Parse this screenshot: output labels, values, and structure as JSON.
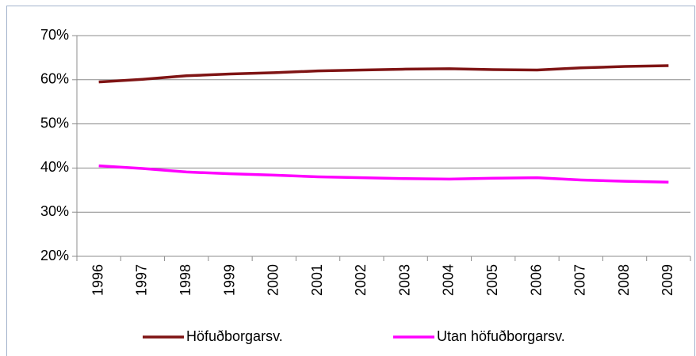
{
  "chart_data": {
    "type": "line",
    "categories": [
      "1996",
      "1997",
      "1998",
      "1999",
      "2000",
      "2001",
      "2002",
      "2003",
      "2004",
      "2005",
      "2006",
      "2007",
      "2008",
      "2009"
    ],
    "series": [
      {
        "name": "Höfuðborgarsv.",
        "color": "#7f1414",
        "values": [
          59.5,
          60.1,
          60.9,
          61.3,
          61.6,
          62.0,
          62.2,
          62.4,
          62.5,
          62.3,
          62.2,
          62.7,
          63.0,
          63.2
        ]
      },
      {
        "name": "Utan höfuðborgarsv.",
        "color": "#ff00ff",
        "values": [
          40.5,
          39.9,
          39.1,
          38.7,
          38.4,
          38.0,
          37.8,
          37.6,
          37.5,
          37.7,
          37.8,
          37.3,
          37.0,
          36.8
        ]
      }
    ],
    "ylim": [
      20,
      70
    ],
    "yticks": [
      {
        "value": 20,
        "label": "20%"
      },
      {
        "value": 30,
        "label": "30%"
      },
      {
        "value": 40,
        "label": "40%"
      },
      {
        "value": 50,
        "label": "50%"
      },
      {
        "value": 60,
        "label": "60%"
      },
      {
        "value": 70,
        "label": "70%"
      }
    ],
    "grid": true,
    "legend": "bottom"
  }
}
